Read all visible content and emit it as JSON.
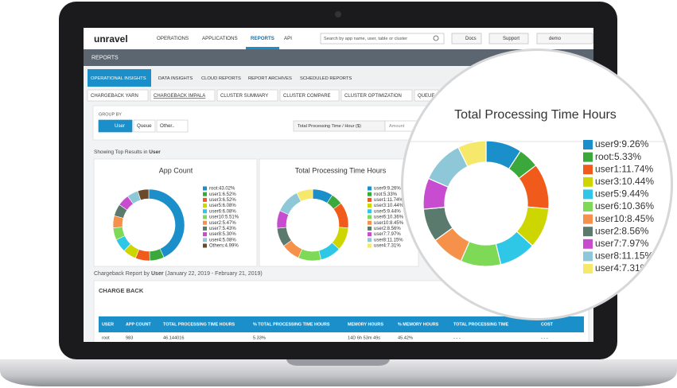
{
  "nav": {
    "logo": "unravel",
    "links": [
      "OPERATIONS",
      "APPLICATIONS",
      "REPORTS",
      "API"
    ],
    "search_placeholder": "Search by app name, user, table or cluster",
    "docs": "Docs",
    "support": "Support",
    "user": "demo"
  },
  "section_title": "REPORTS",
  "tabs": [
    "OPERATIONAL INSIGHTS",
    "DATA INSIGHTS",
    "CLOUD REPORTS",
    "REPORT ARCHIVES",
    "SCHEDULED REPORTS"
  ],
  "subtabs": [
    "CHARGEBACK YARN",
    "CHARGEBACK IMPALA",
    "CLUSTER SUMMARY",
    "CLUSTER COMPARE",
    "CLUSTER OPTIMIZATION",
    "QUEUE"
  ],
  "group_by": {
    "label": "GROUP BY",
    "options": [
      "User",
      "Queue",
      "Other.."
    ]
  },
  "metric_select": "Total Processing Time / Hour ($)",
  "amount_placeholder": "Amount",
  "showing": {
    "text": "Showing Top Results in",
    "bold": "User"
  },
  "chart_data": [
    {
      "type": "pie",
      "title": "App Count",
      "categories": [
        "root:43.02%",
        "user1:6.52%",
        "user3:6.52%",
        "user5:6.08%",
        "user6:6.08%",
        "user10:5.51%",
        "user2:5.47%",
        "user7:5.43%",
        "user8:5.30%",
        "user4:5.08%",
        "Others:4.99%"
      ],
      "values": [
        43.02,
        6.52,
        6.52,
        6.08,
        6.08,
        5.51,
        5.47,
        5.43,
        5.3,
        5.08,
        4.99
      ],
      "colors": [
        "#1a8fc9",
        "#3aa83a",
        "#f05a1a",
        "#cdd600",
        "#2ec8e6",
        "#7ed957",
        "#f5914a",
        "#5a7a6e",
        "#c84ccf",
        "#8ec8d8",
        "#6b4a2a"
      ]
    },
    {
      "type": "pie",
      "title": "Total Processing Time Hours",
      "categories": [
        "user9:9.26%",
        "root:5.33%",
        "user1:11.74%",
        "user3:10.44%",
        "user5:9.44%",
        "user6:10.36%",
        "user10:8.45%",
        "user2:8.56%",
        "user7:7.97%",
        "user8:11.15%",
        "user4:7.31%"
      ],
      "values": [
        9.26,
        5.33,
        11.74,
        10.44,
        9.44,
        10.36,
        8.45,
        8.56,
        7.97,
        11.15,
        7.31
      ],
      "colors": [
        "#1a8fc9",
        "#3aa83a",
        "#f05a1a",
        "#cdd600",
        "#2ec8e6",
        "#7ed957",
        "#f5914a",
        "#5a7a6e",
        "#c84ccf",
        "#8ec8d8",
        "#f5e86a"
      ]
    }
  ],
  "report": {
    "title": "Chargeback Report by",
    "by": "User",
    "range": "(January 22, 2019 - February 21, 2019)"
  },
  "chargeback": {
    "title": "CHARGE BACK",
    "columns": [
      "USER",
      "APP COUNT",
      "TOTAL PROCESSING TIME HOURS",
      "% TOTAL PROCESSING TIME HOURS",
      "MEMORY HOURS",
      "% MEMORY HOURS",
      "TOTAL PROCESSING TIME",
      "COST"
    ],
    "rows": [
      [
        "root",
        "983",
        "46.144016",
        "5.33%",
        "14D 6h 53m 49s",
        "45.42%",
        "- - -",
        "- - -"
      ]
    ]
  }
}
